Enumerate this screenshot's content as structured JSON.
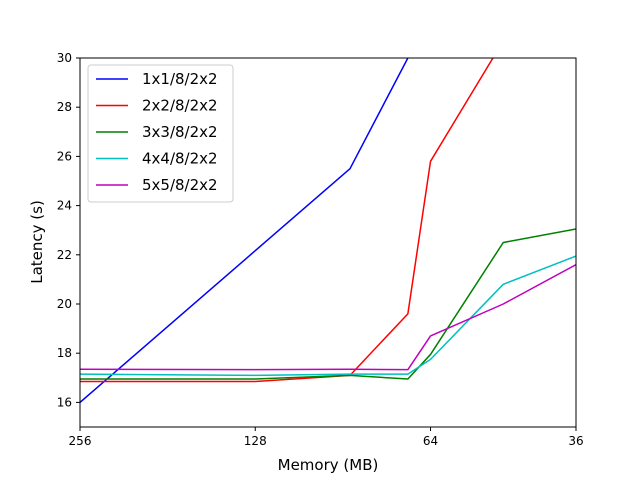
{
  "chart_data": {
    "type": "line",
    "xlabel": "Memory (MB)",
    "ylabel": "Latency (s)",
    "x_scale": "log",
    "x_reversed": true,
    "xlim": [
      256,
      36
    ],
    "ylim": [
      15,
      30
    ],
    "x_ticks": [
      256,
      128,
      64,
      36
    ],
    "y_ticks": [
      16,
      18,
      20,
      22,
      24,
      26,
      28,
      30
    ],
    "grid": false,
    "legend_position": "upper-left",
    "series": [
      {
        "name": "1x1/8/2x2",
        "color": "#0000ff",
        "x": [
          256,
          88,
          70
        ],
        "y": [
          16.0,
          25.5,
          30.0
        ]
      },
      {
        "name": "2x2/8/2x2",
        "color": "#ff0000",
        "x": [
          256,
          128,
          88,
          70,
          64,
          50
        ],
        "y": [
          16.85,
          16.85,
          17.1,
          19.6,
          25.8,
          30.0
        ]
      },
      {
        "name": "3x3/8/2x2",
        "color": "#008000",
        "x": [
          256,
          128,
          88,
          70,
          64,
          48,
          36
        ],
        "y": [
          16.95,
          16.95,
          17.1,
          16.95,
          17.95,
          22.5,
          23.05
        ]
      },
      {
        "name": "4x4/8/2x2",
        "color": "#00bfbf",
        "x": [
          256,
          128,
          88,
          70,
          64,
          48,
          36
        ],
        "y": [
          17.15,
          17.1,
          17.15,
          17.15,
          17.75,
          20.8,
          21.95
        ]
      },
      {
        "name": "5x5/8/2x2",
        "color": "#bf00bf",
        "x": [
          256,
          128,
          88,
          70,
          64,
          48,
          36
        ],
        "y": [
          17.35,
          17.33,
          17.35,
          17.33,
          18.7,
          20.0,
          21.6
        ]
      }
    ]
  }
}
